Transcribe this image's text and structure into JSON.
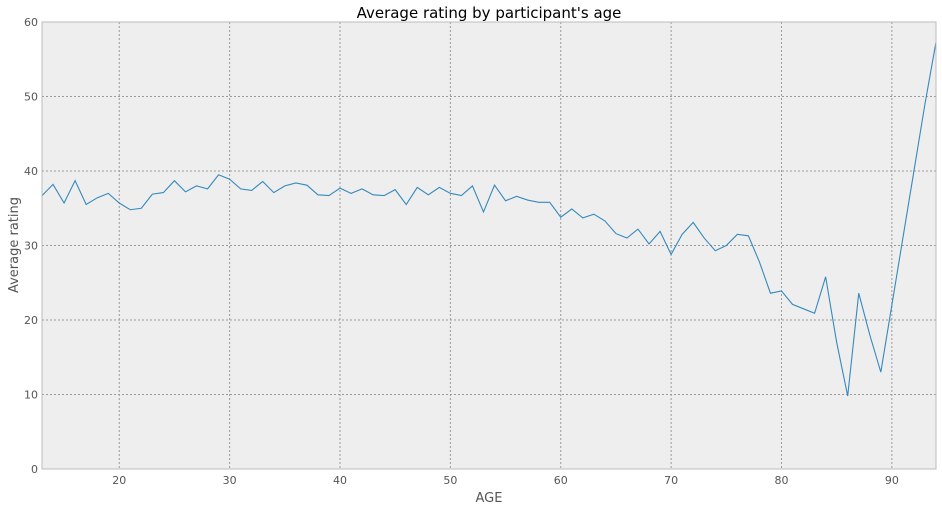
{
  "chart_data": {
    "type": "line",
    "title": "Average rating by participant's age",
    "xlabel": "AGE",
    "ylabel": "Average rating",
    "xlim": [
      13,
      94
    ],
    "ylim": [
      0,
      60
    ],
    "xticks": [
      20,
      30,
      40,
      50,
      60,
      70,
      80,
      90
    ],
    "yticks": [
      0,
      10,
      20,
      30,
      40,
      50,
      60
    ],
    "grid": true,
    "legend": "none",
    "colors": {
      "line": "#348ABD",
      "plot_background": "#EEEEEE",
      "frame": "#BCBCBC",
      "grid": "#9A9A9A"
    },
    "series": [
      {
        "x": [
          13,
          14,
          15,
          16,
          17,
          18,
          19,
          20,
          21,
          22,
          23,
          24,
          25,
          26,
          27,
          28,
          29,
          30,
          31,
          32,
          33,
          34,
          35,
          36,
          37,
          38,
          39,
          40,
          41,
          42,
          43,
          44,
          45,
          46,
          47,
          48,
          49,
          50,
          51,
          52,
          53,
          54,
          55,
          56,
          57,
          58,
          59,
          60,
          61,
          62,
          63,
          64,
          65,
          66,
          67,
          68,
          69,
          70,
          71,
          72,
          73,
          74,
          75,
          76,
          77,
          78,
          79,
          80,
          81,
          82,
          83,
          84,
          85,
          86,
          87,
          88,
          89,
          90,
          91,
          92,
          93,
          94
        ],
        "y": [
          36.7,
          38.2,
          35.7,
          38.7,
          35.5,
          36.4,
          37.0,
          35.7,
          34.8,
          35.0,
          36.9,
          37.1,
          38.7,
          37.2,
          38.0,
          37.6,
          39.5,
          38.9,
          37.6,
          37.4,
          38.6,
          37.1,
          38.0,
          38.4,
          38.1,
          36.8,
          36.7,
          37.7,
          37.0,
          37.6,
          36.8,
          36.7,
          37.5,
          35.5,
          37.8,
          36.8,
          37.8,
          37.0,
          36.7,
          38.0,
          34.5,
          38.1,
          36.0,
          36.6,
          36.1,
          35.8,
          35.8,
          33.8,
          34.9,
          33.7,
          34.2,
          33.3,
          31.6,
          31.0,
          32.2,
          30.2,
          31.9,
          28.8,
          31.5,
          33.1,
          31.0,
          29.3,
          30.0,
          31.5,
          31.3,
          27.8,
          23.6,
          23.9,
          22.1,
          21.5,
          20.9,
          25.8,
          17.0,
          9.8,
          23.6,
          18.0,
          13.0,
          22.0,
          31.0,
          40.0,
          49.0,
          57.3
        ]
      }
    ]
  }
}
